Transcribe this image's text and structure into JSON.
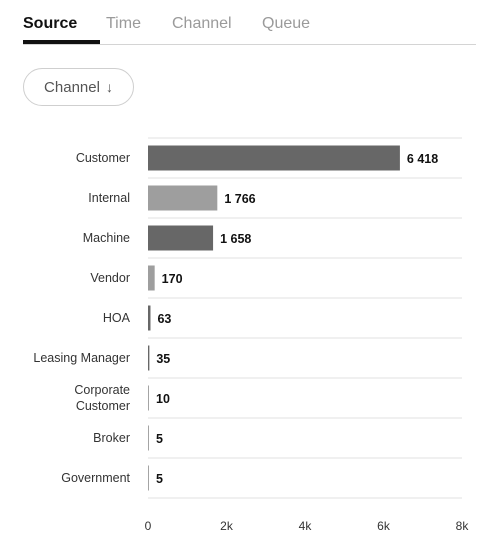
{
  "tabs": [
    {
      "label": "Source",
      "active": true
    },
    {
      "label": "Time",
      "active": false
    },
    {
      "label": "Channel",
      "active": false
    },
    {
      "label": "Queue",
      "active": false
    }
  ],
  "filter": {
    "label": "Channel",
    "icon": "arrow-down-icon"
  },
  "colors": {
    "bar_dark": "#676767",
    "bar_light": "#9e9e9e",
    "grid": "#e2e2e2"
  },
  "chart_data": {
    "type": "bar",
    "orientation": "horizontal",
    "categories": [
      "Customer",
      "Internal",
      "Machine",
      "Vendor",
      "HOA",
      "Leasing Manager",
      "Corporate Customer",
      "Broker",
      "Government"
    ],
    "values": [
      6418,
      1766,
      1658,
      170,
      63,
      35,
      10,
      5,
      5
    ],
    "value_labels": [
      "6 418",
      "1 766",
      "1 658",
      "170",
      "63",
      "35",
      "10",
      "5",
      "5"
    ],
    "xlim": [
      0,
      8000
    ],
    "xticks": [
      0,
      2000,
      4000,
      6000,
      8000
    ],
    "xtick_labels": [
      "0",
      "2k",
      "4k",
      "6k",
      "8k"
    ],
    "grid": true
  }
}
